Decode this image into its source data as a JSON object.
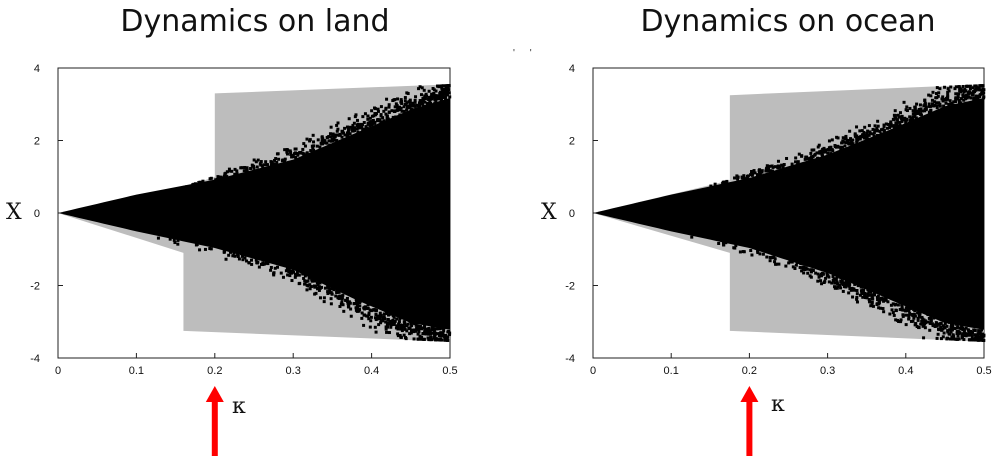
{
  "chart_data": [
    {
      "type": "scatter",
      "title": "Dynamics on land",
      "ylabel": "X",
      "xlabel": "κ",
      "xlim": [
        0,
        0.5
      ],
      "ylim": [
        -4,
        4
      ],
      "x_ticks": [
        "0",
        "0.1",
        "0.2",
        "0.3",
        "0.4",
        "0.5"
      ],
      "y_ticks": [
        "4",
        "2",
        "0",
        "-2",
        "-4"
      ],
      "grid": false,
      "series": [
        {
          "kind": "gray-envelope",
          "color": "#bdbdbd",
          "upper": [
            [
              0,
              0
            ],
            [
              0.16,
              0.7
            ],
            [
              0.2,
              1.0
            ],
            [
              0.2,
              3.3
            ],
            [
              0.5,
              3.55
            ]
          ],
          "lower": [
            [
              0,
              0
            ],
            [
              0.16,
              -1.1
            ],
            [
              0.16,
              -3.25
            ],
            [
              0.5,
              -3.55
            ]
          ]
        },
        {
          "kind": "black-points",
          "color": "#000000",
          "upper": [
            [
              0,
              0
            ],
            [
              0.1,
              0.55
            ],
            [
              0.2,
              1.0
            ],
            [
              0.3,
              1.6
            ],
            [
              0.38,
              2.4
            ],
            [
              0.45,
              3.1
            ],
            [
              0.5,
              3.45
            ]
          ],
          "lower": [
            [
              0,
              0
            ],
            [
              0.1,
              -0.55
            ],
            [
              0.2,
              -1.05
            ],
            [
              0.3,
              -1.7
            ],
            [
              0.38,
              -2.6
            ],
            [
              0.45,
              -3.3
            ],
            [
              0.5,
              -3.5
            ]
          ]
        }
      ],
      "annotation": {
        "type": "red-arrow",
        "x": 0.2,
        "color": "#ff0000"
      }
    },
    {
      "type": "scatter",
      "title": "Dynamics on ocean",
      "ylabel": "X",
      "xlabel": "κ",
      "xlim": [
        0,
        0.5
      ],
      "ylim": [
        -4,
        4
      ],
      "x_ticks": [
        "0",
        "0.1",
        "0.2",
        "0.3",
        "0.4",
        "0.5"
      ],
      "y_ticks": [
        "4",
        "2",
        "0",
        "-2",
        "-4"
      ],
      "grid": false,
      "series": [
        {
          "kind": "gray-envelope",
          "color": "#bdbdbd",
          "upper": [
            [
              0,
              0
            ],
            [
              0.175,
              0.9
            ],
            [
              0.175,
              3.25
            ],
            [
              0.5,
              3.55
            ]
          ],
          "lower": [
            [
              0,
              0
            ],
            [
              0.175,
              -1.1
            ],
            [
              0.175,
              -3.25
            ],
            [
              0.5,
              -3.55
            ]
          ]
        },
        {
          "kind": "black-points",
          "color": "#000000",
          "upper": [
            [
              0,
              0
            ],
            [
              0.1,
              0.55
            ],
            [
              0.2,
              1.05
            ],
            [
              0.3,
              1.75
            ],
            [
              0.38,
              2.5
            ],
            [
              0.45,
              3.2
            ],
            [
              0.5,
              3.45
            ]
          ],
          "lower": [
            [
              0,
              0
            ],
            [
              0.1,
              -0.55
            ],
            [
              0.2,
              -1.05
            ],
            [
              0.3,
              -1.8
            ],
            [
              0.38,
              -2.6
            ],
            [
              0.45,
              -3.3
            ],
            [
              0.5,
              -3.5
            ]
          ]
        }
      ],
      "annotation": {
        "type": "red-arrow",
        "x": 0.2,
        "color": "#ff0000"
      }
    }
  ]
}
